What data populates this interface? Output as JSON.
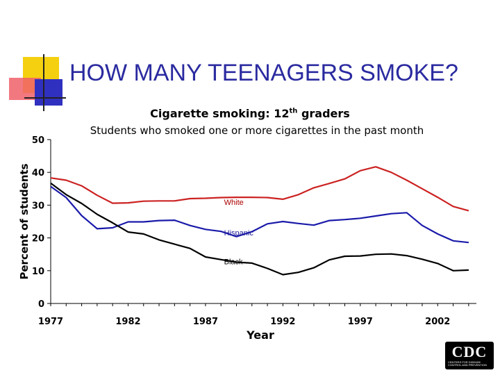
{
  "slide": {
    "title": "HOW MANY TEENAGERS SMOKE?",
    "subtitle_main": "Cigarette smoking: 12",
    "subtitle_sup": "th",
    "subtitle_tail": " graders",
    "subtitle2": "Students who smoked one or more cigarettes in the past month",
    "logo_text": "CDC",
    "logo_sub": "CENTERS FOR DISEASE CONTROL AND PREVENTION"
  },
  "chart_data": {
    "type": "line",
    "title": "Cigarette smoking: 12th graders",
    "subtitle": "Students who smoked one or more cigarettes in the past month",
    "xlabel": "Year",
    "ylabel": "Percent of students",
    "xlim": [
      1977,
      2004.5
    ],
    "ylim": [
      0,
      50
    ],
    "x_ticks": [
      "1977",
      "1982",
      "1987",
      "1992",
      "1997",
      "2002"
    ],
    "y_ticks": [
      "0",
      "10",
      "20",
      "30",
      "40",
      "50"
    ],
    "grid": false,
    "legend": "inline labels",
    "x": [
      1977,
      1978,
      1979,
      1980,
      1981,
      1982,
      1983,
      1984,
      1985,
      1986,
      1987,
      1988,
      1989,
      1990,
      1991,
      1992,
      1993,
      1994,
      1995,
      1996,
      1997,
      1998,
      1999,
      2000,
      2001,
      2002,
      2003,
      2004
    ],
    "series": [
      {
        "name": "White",
        "color": "#cc2222",
        "values": [
          38.3,
          37.6,
          35.9,
          33,
          30.6,
          30.7,
          31.2,
          31.3,
          31.3,
          32,
          32.1,
          32.3,
          32.4,
          32.4,
          32.3,
          31.8,
          33.2,
          35.3,
          36.6,
          38,
          40.5,
          41.7,
          40,
          37.6,
          35,
          32.4,
          29.6,
          28.3
        ]
      },
      {
        "name": "Hispanic",
        "color": "#1a1aaa",
        "values": [
          35.7,
          32.3,
          26.8,
          22.8,
          23.1,
          24.9,
          24.9,
          25.3,
          25.4,
          23.8,
          22.6,
          22,
          20.4,
          21.9,
          24.3,
          25,
          24.4,
          23.9,
          25.3,
          25.6,
          26,
          26.7,
          27.4,
          27.7,
          23.8,
          21.2,
          19.1,
          18.6
        ]
      },
      {
        "name": "Black",
        "color": "#000000",
        "values": [
          36.7,
          33.2,
          30.5,
          27.2,
          24.6,
          21.8,
          21.2,
          19.4,
          18.1,
          16.8,
          14.2,
          13.4,
          12.6,
          12.3,
          10.7,
          8.8,
          9.5,
          10.9,
          13.3,
          14.4,
          14.5,
          15,
          15.1,
          14.6,
          13.5,
          12.2,
          10,
          10.2
        ]
      }
    ]
  }
}
